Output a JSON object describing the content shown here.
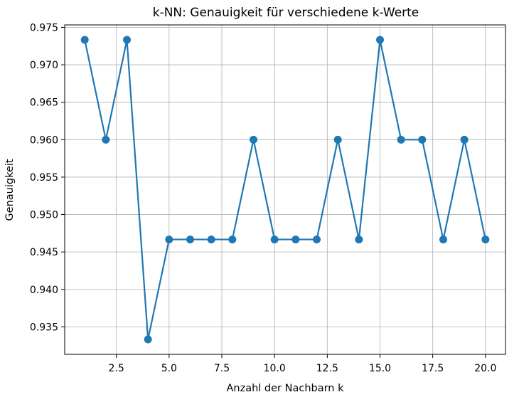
{
  "chart_data": {
    "type": "line",
    "title": "k-NN: Genauigkeit für verschiedene k-Werte",
    "xlabel": "Anzahl der Nachbarn k",
    "ylabel": "Genauigkeit",
    "x": [
      1,
      2,
      3,
      4,
      5,
      6,
      7,
      8,
      9,
      10,
      11,
      12,
      13,
      14,
      15,
      16,
      17,
      18,
      19,
      20
    ],
    "series": [
      {
        "values": [
          0.97333,
          0.96,
          0.97333,
          0.93333,
          0.94667,
          0.94667,
          0.94667,
          0.94667,
          0.96,
          0.94667,
          0.94667,
          0.94667,
          0.96,
          0.94667,
          0.97333,
          0.96,
          0.96,
          0.94667,
          0.96,
          0.94667
        ]
      }
    ],
    "xlim": [
      0.05,
      20.95
    ],
    "ylim": [
      0.93133,
      0.97533
    ],
    "xticks": [
      2.5,
      5.0,
      7.5,
      10.0,
      12.5,
      15.0,
      17.5,
      20.0
    ],
    "xtick_labels": [
      "2.5",
      "5.0",
      "7.5",
      "10.0",
      "12.5",
      "15.0",
      "17.5",
      "20.0"
    ],
    "yticks": [
      0.935,
      0.94,
      0.945,
      0.95,
      0.955,
      0.96,
      0.965,
      0.97,
      0.975
    ],
    "ytick_labels": [
      "0.935",
      "0.940",
      "0.945",
      "0.950",
      "0.955",
      "0.960",
      "0.965",
      "0.970",
      "0.975"
    ],
    "grid": true,
    "line_color": "#1f77b4",
    "marker": "circle"
  }
}
